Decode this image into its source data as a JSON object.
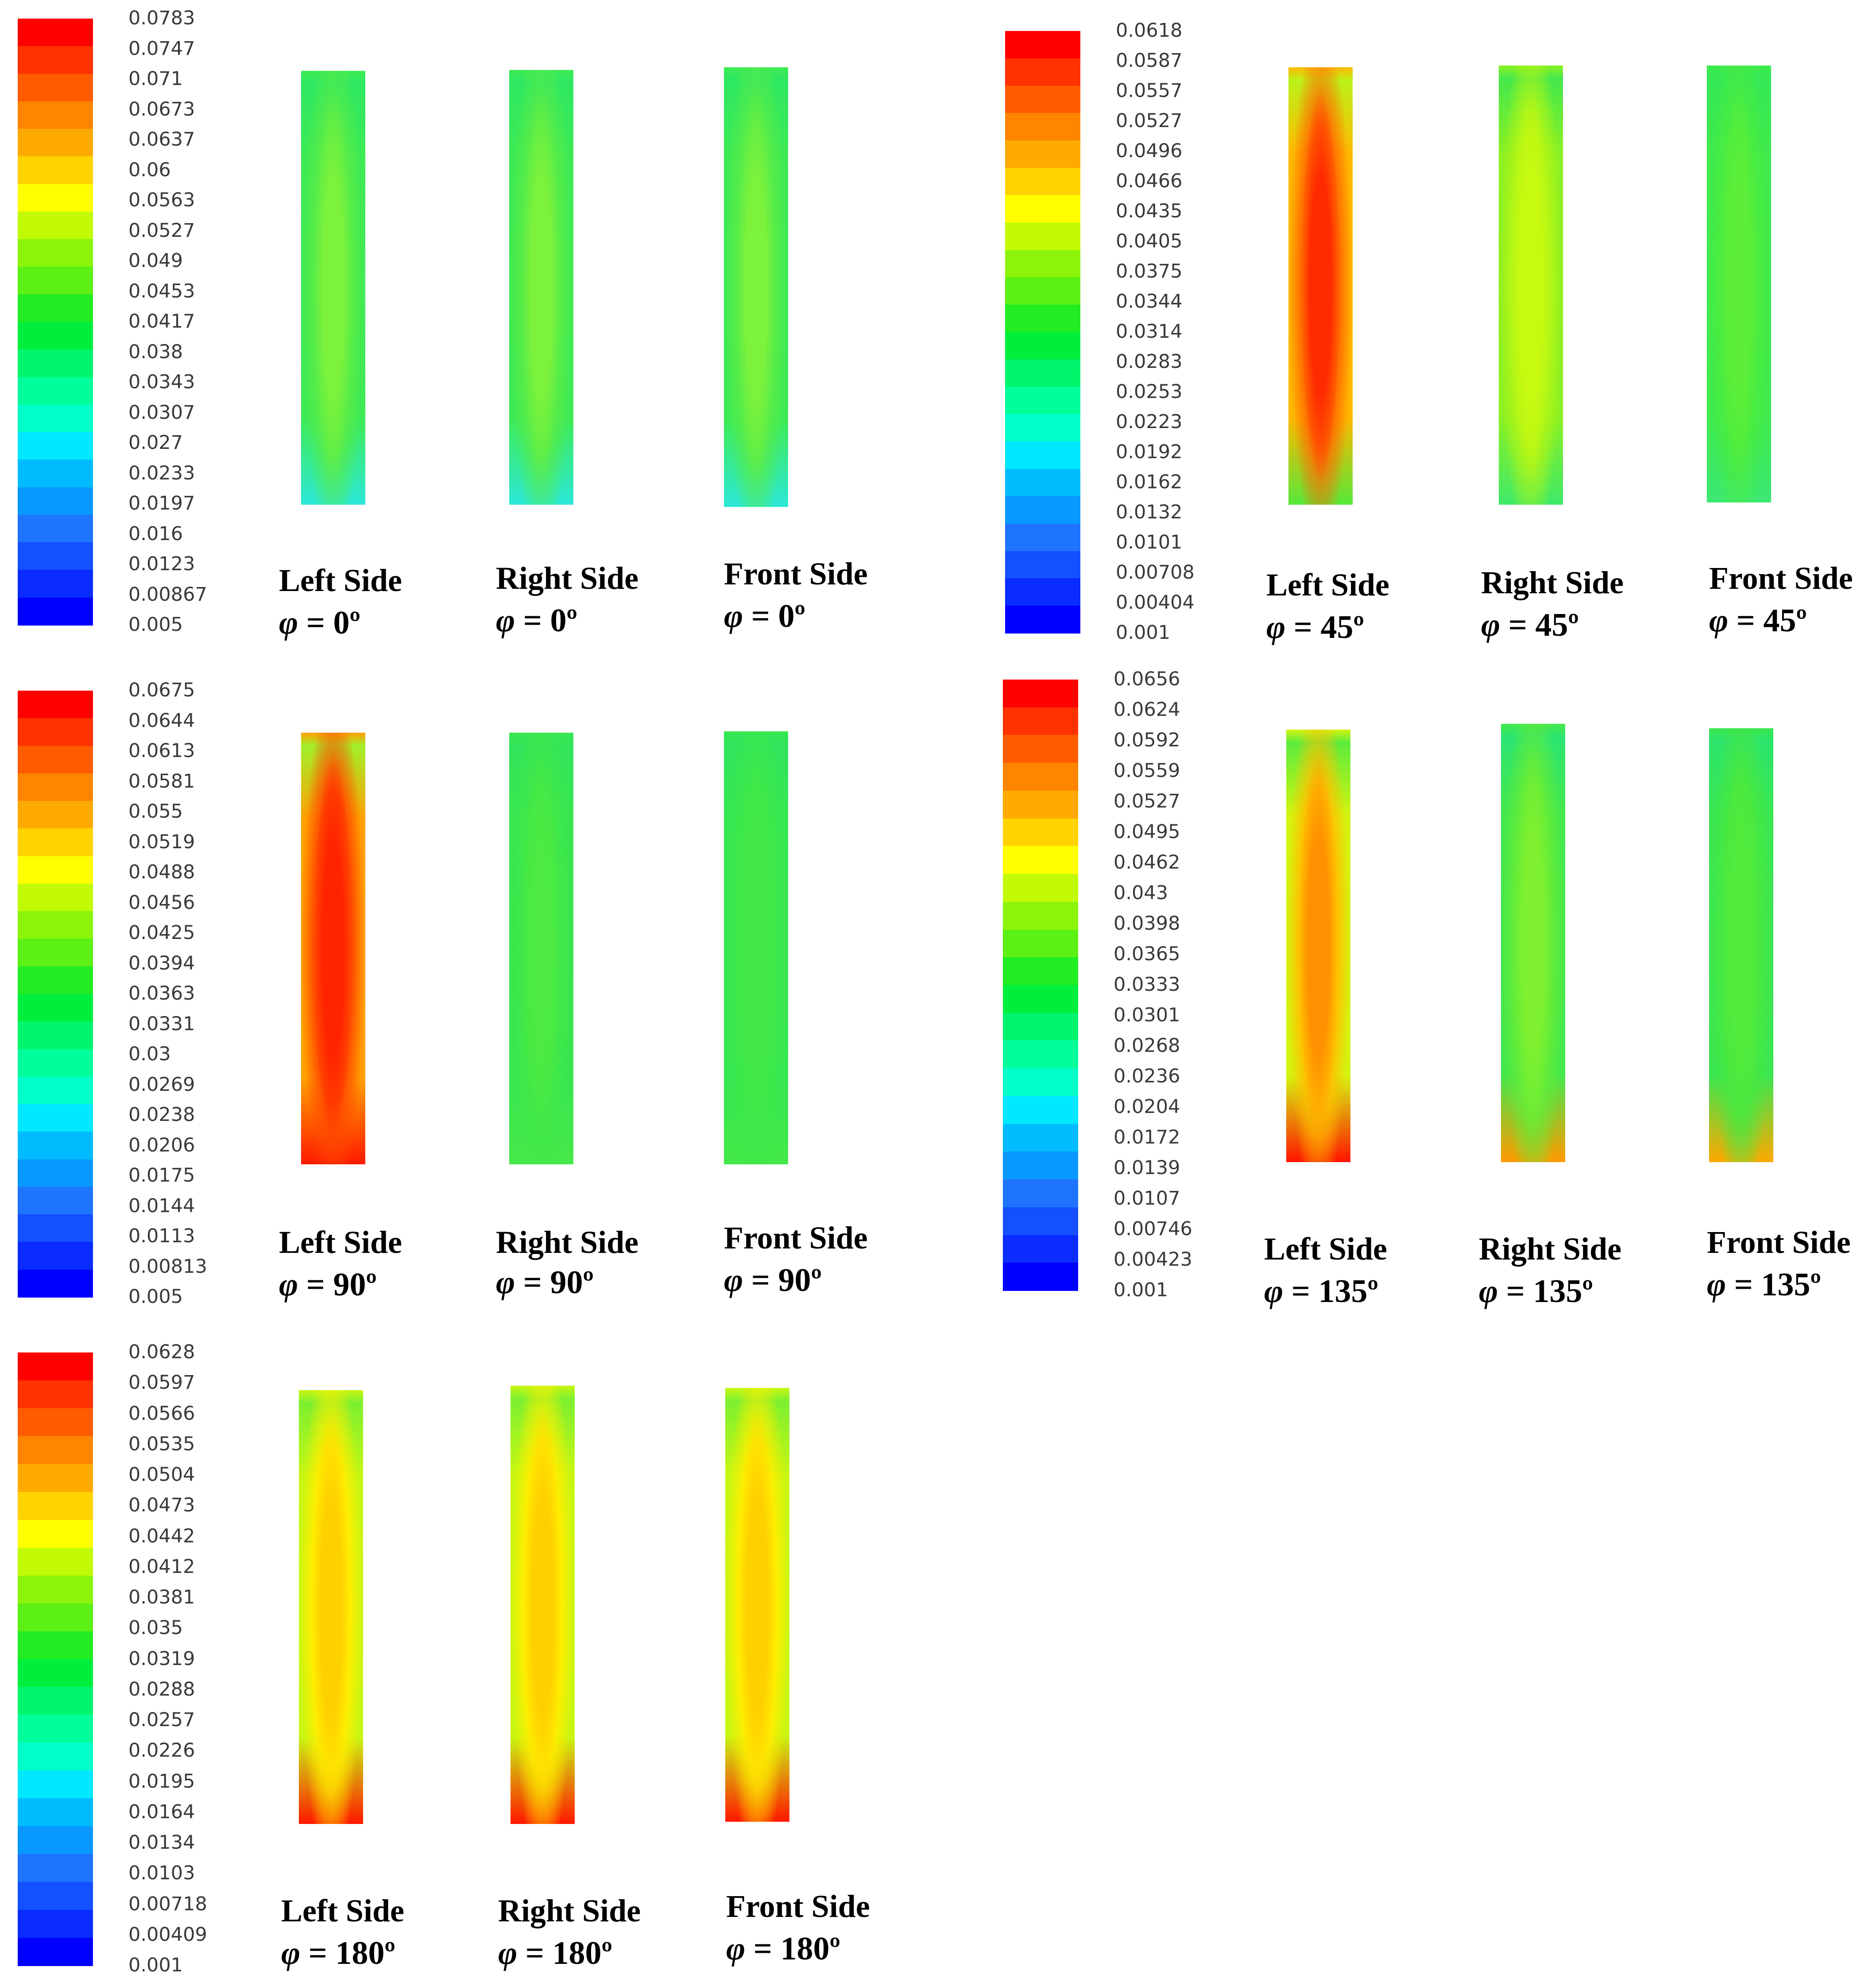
{
  "colormap": [
    "#0000ff",
    "#0a2cff",
    "#1450ff",
    "#1e74ff",
    "#0898ff",
    "#00bcff",
    "#00e8ff",
    "#00ffc8",
    "#00ff9a",
    "#00f56c",
    "#00ef3c",
    "#22ec22",
    "#5cf014",
    "#8cf40a",
    "#c2fa06",
    "#ffff00",
    "#ffd200",
    "#ffaa00",
    "#ff8400",
    "#ff5c00",
    "#ff3200",
    "#ff0000"
  ],
  "panels": [
    {
      "id": "phi-0",
      "colorbar_ticks": [
        "0.0783",
        "0.0747",
        "0.071",
        "0.0673",
        "0.0637",
        "0.06",
        "0.0563",
        "0.0527",
        "0.049",
        "0.0453",
        "0.0417",
        "0.038",
        "0.0343",
        "0.0307",
        "0.027",
        "0.0233",
        "0.0197",
        "0.016",
        "0.0123",
        "0.00867",
        "0.005"
      ],
      "plots": [
        {
          "side_label": "Left Side",
          "angle_label": "= 0º",
          "palette": [
            "#2ee862",
            "#3eea54",
            "#58ec48",
            "#7cf23c"
          ],
          "bottom": "#2ce8d8"
        },
        {
          "side_label": "Right Side",
          "angle_label": "= 0º",
          "palette": [
            "#2ee862",
            "#3eea54",
            "#58ec48",
            "#7cf23c"
          ],
          "bottom": "#2ce8d8"
        },
        {
          "side_label": "Front  Side",
          "angle_label": "= 0º",
          "palette": [
            "#2ee862",
            "#3eea54",
            "#58ec48",
            "#7cf23c"
          ],
          "bottom": "#2ce8d8"
        }
      ]
    },
    {
      "id": "phi-45",
      "colorbar_ticks": [
        "0.0618",
        "0.0587",
        "0.0557",
        "0.0527",
        "0.0496",
        "0.0466",
        "0.0435",
        "0.0405",
        "0.0375",
        "0.0344",
        "0.0314",
        "0.0283",
        "0.0253",
        "0.0223",
        "0.0192",
        "0.0162",
        "0.0132",
        "0.0101",
        "0.00708",
        "0.00404",
        "0.001"
      ],
      "plots": [
        {
          "side_label": "Left Side",
          "angle_label": "= 45º",
          "palette": [
            "#bcf21a",
            "#ffb800",
            "#ff6a00",
            "#ff2a00"
          ],
          "bottom": "#56e83a"
        },
        {
          "side_label": "Right Side",
          "angle_label": "= 45º",
          "palette": [
            "#44e84c",
            "#8cf022",
            "#b4f616",
            "#c8fa10"
          ],
          "bottom": "#3ee86a"
        },
        {
          "side_label": "Front  Side",
          "angle_label": "= 45º",
          "palette": [
            "#34e856",
            "#3eea4c",
            "#4cec40",
            "#5cee38"
          ],
          "bottom": "#3ce874"
        }
      ]
    },
    {
      "id": "phi-90",
      "colorbar_ticks": [
        "0.0675",
        "0.0644",
        "0.0613",
        "0.0581",
        "0.055",
        "0.0519",
        "0.0488",
        "0.0456",
        "0.0425",
        "0.0394",
        "0.0363",
        "0.0331",
        "0.03",
        "0.0269",
        "0.0238",
        "0.0206",
        "0.0175",
        "0.0144",
        "0.0113",
        "0.00813",
        "0.005"
      ],
      "plots": [
        {
          "side_label": "Left Side",
          "angle_label": "= 90º",
          "palette": [
            "#a2f02a",
            "#ffa000",
            "#ff4c00",
            "#ff2400"
          ],
          "bottom": "#ff1a00"
        },
        {
          "side_label": "Right Side",
          "angle_label": "= 90º",
          "palette": [
            "#32e45a",
            "#38e650",
            "#42e848",
            "#4cea42"
          ],
          "bottom": "#48e84a"
        },
        {
          "side_label": "Front  Side",
          "angle_label": "= 90º",
          "palette": [
            "#30e45c",
            "#36e652",
            "#3ee84a",
            "#44e846"
          ],
          "bottom": "#44e848"
        }
      ]
    },
    {
      "id": "phi-135",
      "colorbar_ticks": [
        "0.0656",
        "0.0624",
        "0.0592",
        "0.0559",
        "0.0527",
        "0.0495",
        "0.0462",
        "0.043",
        "0.0398",
        "0.0365",
        "0.0333",
        "0.0301",
        "0.0268",
        "0.0236",
        "0.0204",
        "0.0172",
        "0.0139",
        "0.0107",
        "0.00746",
        "0.00423",
        "0.001"
      ],
      "plots": [
        {
          "side_label": "Left Side",
          "angle_label": "= 135º",
          "palette": [
            "#5cec3c",
            "#d4f410",
            "#ffc000",
            "#ff9000"
          ],
          "bottom": "#ff1400"
        },
        {
          "side_label": "Right Side",
          "angle_label": "= 135º",
          "palette": [
            "#2ce472",
            "#44e84c",
            "#64ec38",
            "#7ef030"
          ],
          "bottom": "#ff9a00"
        },
        {
          "side_label": "Front  Side",
          "angle_label": "= 135º",
          "palette": [
            "#2ce46c",
            "#3ae650",
            "#48e842",
            "#52ea3c"
          ],
          "bottom": "#ffa800"
        }
      ]
    },
    {
      "id": "phi-180",
      "colorbar_ticks": [
        "0.0628",
        "0.0597",
        "0.0566",
        "0.0535",
        "0.0504",
        "0.0473",
        "0.0442",
        "0.0412",
        "0.0381",
        "0.035",
        "0.0319",
        "0.0288",
        "0.0257",
        "0.0226",
        "0.0195",
        "0.0164",
        "0.0134",
        "0.0103",
        "0.00718",
        "0.00409",
        "0.001"
      ],
      "plots": [
        {
          "side_label": "Left Side",
          "angle_label": "= 180º",
          "palette": [
            "#7cf030",
            "#c8f612",
            "#ffee00",
            "#ffd000"
          ],
          "bottom": "#ff1800"
        },
        {
          "side_label": "Right Side",
          "angle_label": "= 180º",
          "palette": [
            "#7cf030",
            "#c8f612",
            "#ffee00",
            "#ffd000"
          ],
          "bottom": "#ff1800"
        },
        {
          "side_label": "Front  Side",
          "angle_label": "= 180º",
          "palette": [
            "#7cf030",
            "#c8f612",
            "#ffee00",
            "#ffd000"
          ],
          "bottom": "#ff1800"
        }
      ]
    }
  ]
}
